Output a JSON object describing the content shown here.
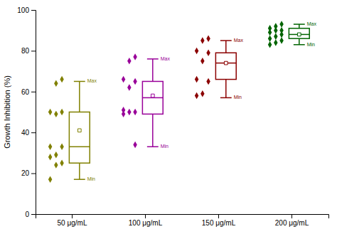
{
  "chart_data": {
    "type": "box",
    "categories": [
      "50 μg/mL",
      "100 μg/mL",
      "150 μg/mL",
      "200 μg/mL"
    ],
    "colors": [
      "#808000",
      "#990099",
      "#8B0000",
      "#006400"
    ],
    "boxes": [
      {
        "min": 17,
        "q1": 25,
        "median": 33,
        "q3": 50,
        "max": 65,
        "mean": 41,
        "points": [
          66,
          64,
          50,
          50,
          49,
          33,
          33,
          29,
          28,
          25,
          24,
          17
        ]
      },
      {
        "min": 33,
        "q1": 49,
        "median": 57,
        "q3": 65,
        "max": 76,
        "mean": 58,
        "points": [
          77,
          75,
          66,
          65,
          62,
          51,
          50,
          50,
          49,
          34
        ]
      },
      {
        "min": 57,
        "q1": 66,
        "median": 74,
        "q3": 79,
        "max": 85,
        "mean": 74,
        "points": [
          86,
          85,
          80,
          79,
          75,
          66,
          65,
          59,
          58
        ]
      },
      {
        "min": 83,
        "q1": 86,
        "median": 88,
        "q3": 91,
        "max": 93,
        "mean": 88,
        "points": [
          93,
          92,
          91,
          90,
          90,
          89,
          88,
          87,
          86,
          85,
          84,
          83
        ]
      }
    ],
    "whisker_labels": {
      "max": "Max",
      "min": "Min"
    },
    "ylabel": "Growth Inhibition (%)",
    "ylim": [
      0,
      100
    ],
    "yticks": [
      0,
      20,
      40,
      60,
      80,
      100
    ]
  }
}
